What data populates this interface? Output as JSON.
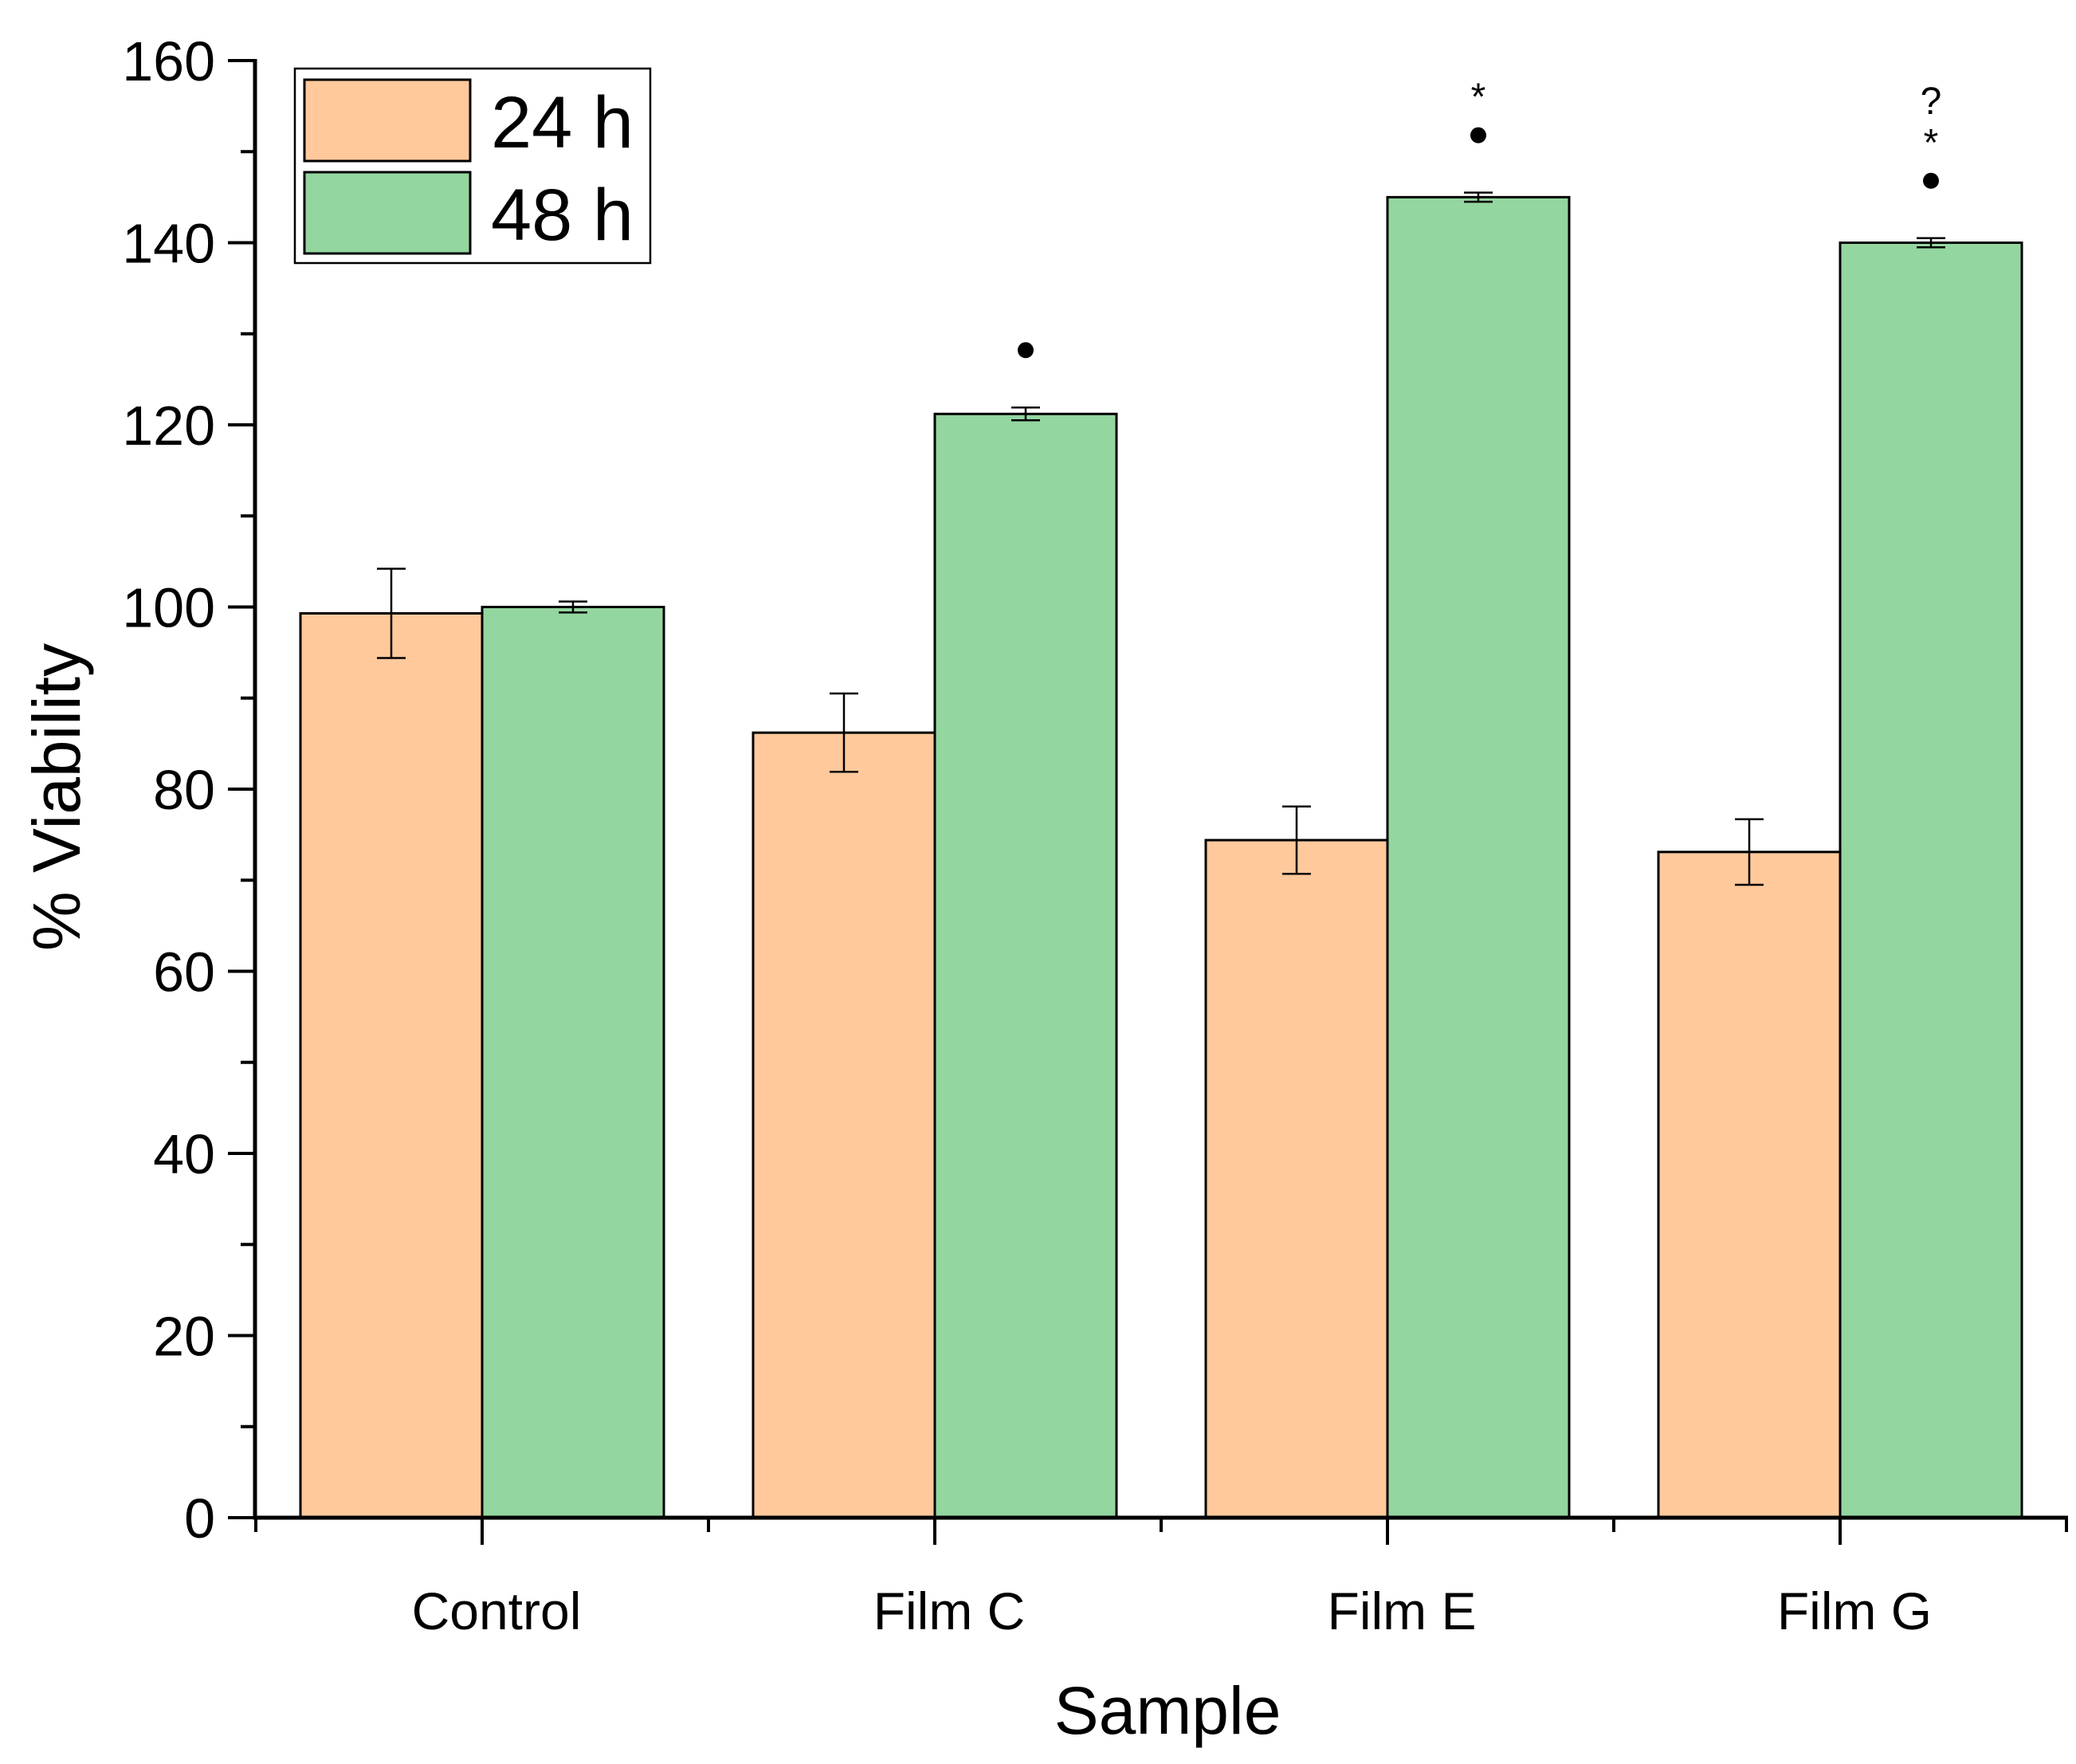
{
  "chart_data": {
    "type": "bar",
    "title": "",
    "xlabel": "Sample",
    "ylabel": "% Viability",
    "ylim": [
      0,
      160
    ],
    "yticks": [
      0,
      20,
      40,
      60,
      80,
      100,
      120,
      140,
      160
    ],
    "ytick_labels": [
      "0",
      "20",
      "40",
      "60",
      "80",
      "100",
      "120",
      "140",
      "160"
    ],
    "categories": [
      "Control",
      "Film C",
      "Film E",
      "Film G"
    ],
    "series": [
      {
        "name": "24 h",
        "color": "#FFC99C",
        "values": [
          99.3,
          86.2,
          74.4,
          73.1
        ],
        "errors": [
          4.9,
          4.3,
          3.7,
          3.6
        ]
      },
      {
        "name": "48 h",
        "color": "#94D6A0",
        "values": [
          100.0,
          121.2,
          145.0,
          140.0
        ],
        "errors": [
          0.6,
          0.7,
          0.5,
          0.5
        ]
      }
    ],
    "significance_markers": [
      {
        "category": "Film C",
        "series": "48 h",
        "symbols": [
          "•"
        ]
      },
      {
        "category": "Film E",
        "series": "48 h",
        "symbols": [
          "•",
          "*"
        ]
      },
      {
        "category": "Film G",
        "series": "48 h",
        "symbols": [
          "•",
          "*",
          "?"
        ]
      }
    ],
    "legend": {
      "position": "top-left",
      "entries": [
        "24 h",
        "48 h"
      ]
    },
    "colors": {
      "axis": "#000000",
      "bar_outline": "#000000",
      "background": "#FFFFFF"
    }
  }
}
